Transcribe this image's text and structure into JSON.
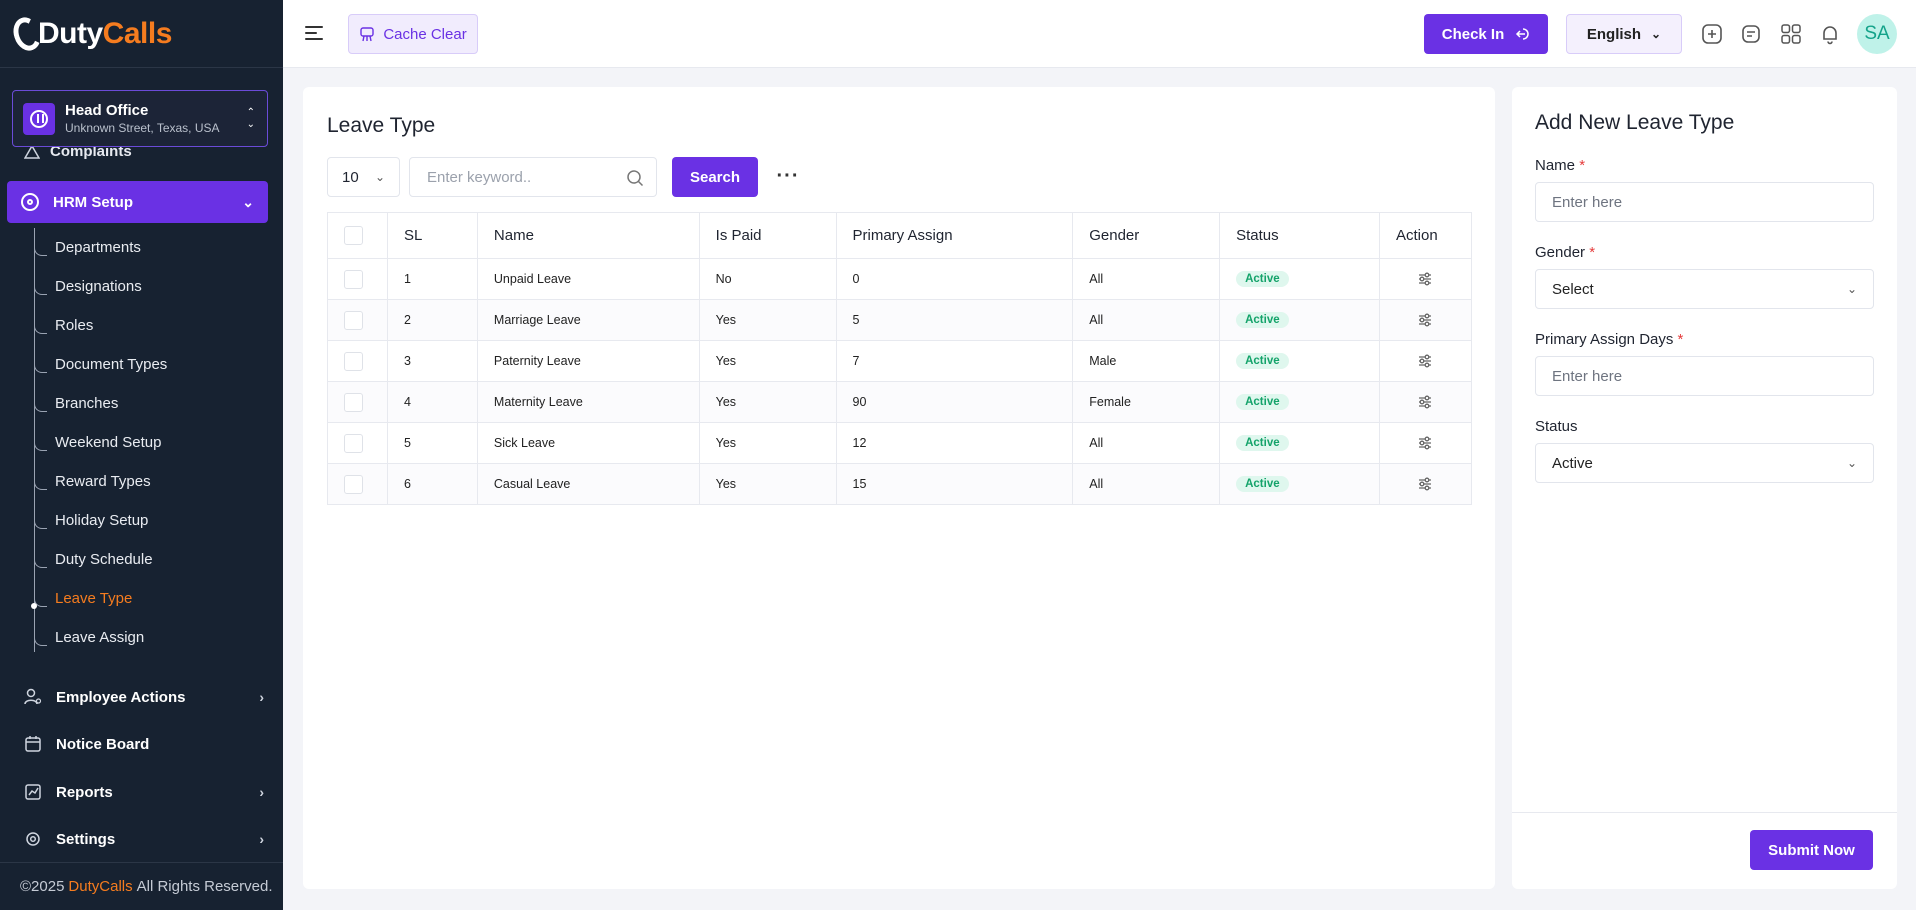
{
  "brand": {
    "part1": "Duty",
    "part2": "Calls"
  },
  "branch": {
    "title": "Head Office",
    "address": "Unknown Street, Texas, USA"
  },
  "sidebar": {
    "partial_item": "Complaints",
    "active_group": "HRM Setup",
    "sub_items": [
      "Departments",
      "Designations",
      "Roles",
      "Document Types",
      "Branches",
      "Weekend Setup",
      "Reward Types",
      "Holiday Setup",
      "Duty Schedule",
      "Leave Type",
      "Leave Assign"
    ],
    "active_sub": "Leave Type",
    "items": [
      "Employee Actions",
      "Notice Board",
      "Reports",
      "Settings"
    ]
  },
  "footer": {
    "prefix": "©2025",
    "brand": "DutyCalls",
    "suffix": "All Rights Reserved."
  },
  "topbar": {
    "cache_clear": "Cache Clear",
    "check_in": "Check In",
    "language": "English",
    "avatar_initials": "SA"
  },
  "list": {
    "title": "Leave Type",
    "per_page": "10",
    "search_placeholder": "Enter keyword..",
    "search_button": "Search",
    "columns": [
      "SL",
      "Name",
      "Is Paid",
      "Primary Assign",
      "Gender",
      "Status",
      "Action"
    ],
    "rows": [
      {
        "sl": "1",
        "name": "Unpaid Leave",
        "paid": "No",
        "assign": "0",
        "gender": "All",
        "status": "Active"
      },
      {
        "sl": "2",
        "name": "Marriage Leave",
        "paid": "Yes",
        "assign": "5",
        "gender": "All",
        "status": "Active"
      },
      {
        "sl": "3",
        "name": "Paternity Leave",
        "paid": "Yes",
        "assign": "7",
        "gender": "Male",
        "status": "Active"
      },
      {
        "sl": "4",
        "name": "Maternity Leave",
        "paid": "Yes",
        "assign": "90",
        "gender": "Female",
        "status": "Active"
      },
      {
        "sl": "5",
        "name": "Sick Leave",
        "paid": "Yes",
        "assign": "12",
        "gender": "All",
        "status": "Active"
      },
      {
        "sl": "6",
        "name": "Casual Leave",
        "paid": "Yes",
        "assign": "15",
        "gender": "All",
        "status": "Active"
      }
    ]
  },
  "form": {
    "title": "Add New Leave Type",
    "name_label": "Name",
    "name_placeholder": "Enter here",
    "gender_label": "Gender",
    "gender_value": "Select",
    "days_label": "Primary Assign Days",
    "days_placeholder": "Enter here",
    "status_label": "Status",
    "status_value": "Active",
    "required_mark": "*",
    "submit": "Submit Now"
  },
  "colors": {
    "primary": "#6a31e4",
    "accent": "#f57c1f",
    "sidebar": "#172231",
    "success": "#14a36a"
  }
}
